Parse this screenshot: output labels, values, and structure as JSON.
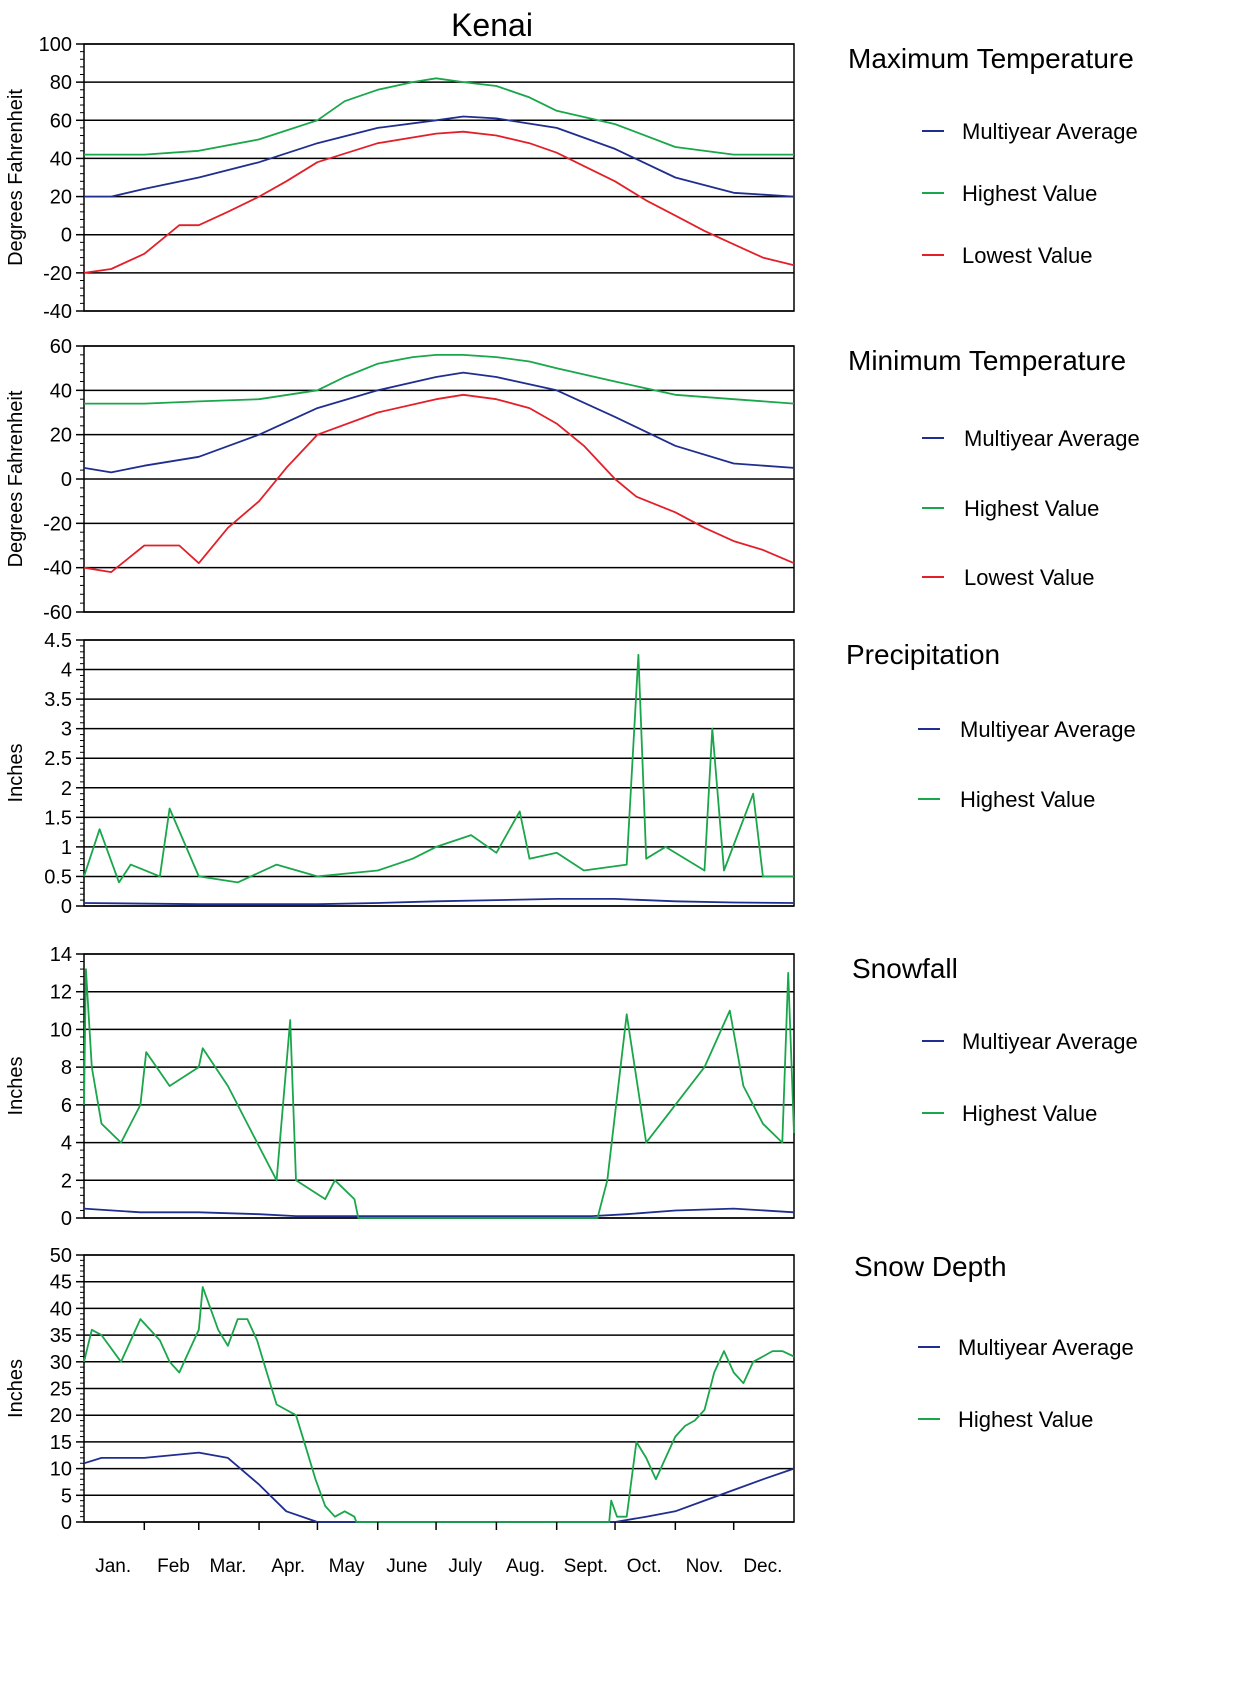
{
  "title": "Kenai",
  "colors": {
    "average": "#1f2e8f",
    "highest": "#1aa64a",
    "lowest": "#e3202a",
    "grid": "#000000"
  },
  "months": [
    "Jan.",
    "Feb",
    "Mar.",
    "Apr.",
    "May",
    "June",
    "July",
    "Aug.",
    "Sept.",
    "Oct.",
    "Nov.",
    "Dec."
  ],
  "chart_data": [
    {
      "type": "line",
      "title": "Maximum Temperature",
      "ylabel": "Degrees Fahrenheit",
      "ylim": [
        -40,
        100
      ],
      "yticks": [
        -40,
        -20,
        0,
        20,
        40,
        60,
        80,
        100
      ],
      "xlabel": "",
      "grid": true,
      "legend_position": "right",
      "series": [
        {
          "name": "Multiyear Average",
          "color": "#1f2e8f",
          "x": [
            1,
            15,
            32,
            60,
            91,
            121,
            152,
            182,
            196,
            213,
            244,
            274,
            305,
            335,
            366
          ],
          "y": [
            20,
            20,
            24,
            30,
            38,
            48,
            56,
            60,
            62,
            61,
            56,
            45,
            30,
            22,
            20
          ]
        },
        {
          "name": "Highest Value",
          "color": "#1aa64a",
          "x": [
            1,
            32,
            60,
            91,
            121,
            135,
            152,
            170,
            182,
            196,
            213,
            230,
            244,
            274,
            305,
            335,
            366
          ],
          "y": [
            42,
            42,
            44,
            50,
            60,
            70,
            76,
            80,
            82,
            80,
            78,
            72,
            65,
            58,
            46,
            42,
            42
          ]
        },
        {
          "name": "Lowest Value",
          "color": "#e3202a",
          "x": [
            1,
            15,
            32,
            50,
            60,
            75,
            91,
            105,
            121,
            152,
            182,
            196,
            213,
            230,
            244,
            258,
            274,
            290,
            305,
            320,
            335,
            350,
            366
          ],
          "y": [
            -20,
            -18,
            -10,
            5,
            5,
            12,
            20,
            28,
            38,
            48,
            53,
            54,
            52,
            48,
            43,
            36,
            28,
            18,
            10,
            2,
            -5,
            -12,
            -16
          ]
        }
      ]
    },
    {
      "type": "line",
      "title": "Minimum Temperature",
      "ylabel": "Degrees Fahrenheit",
      "ylim": [
        -60,
        60
      ],
      "yticks": [
        -60,
        -40,
        -20,
        0,
        20,
        40,
        60
      ],
      "xlabel": "",
      "grid": true,
      "legend_position": "right",
      "series": [
        {
          "name": "Multiyear Average",
          "color": "#1f2e8f",
          "x": [
            1,
            15,
            32,
            60,
            91,
            121,
            152,
            182,
            196,
            213,
            244,
            274,
            305,
            335,
            366
          ],
          "y": [
            5,
            3,
            6,
            10,
            20,
            32,
            40,
            46,
            48,
            46,
            40,
            28,
            15,
            7,
            5
          ]
        },
        {
          "name": "Highest Value",
          "color": "#1aa64a",
          "x": [
            1,
            32,
            60,
            91,
            121,
            135,
            152,
            170,
            182,
            196,
            213,
            230,
            244,
            274,
            305,
            335,
            366
          ],
          "y": [
            34,
            34,
            35,
            36,
            40,
            46,
            52,
            55,
            56,
            56,
            55,
            53,
            50,
            44,
            38,
            36,
            34
          ]
        },
        {
          "name": "Lowest Value",
          "color": "#e3202a",
          "x": [
            1,
            15,
            32,
            50,
            60,
            75,
            91,
            105,
            121,
            152,
            182,
            196,
            213,
            230,
            244,
            258,
            274,
            285,
            305,
            320,
            335,
            350,
            366
          ],
          "y": [
            -40,
            -42,
            -30,
            -30,
            -38,
            -22,
            -10,
            5,
            20,
            30,
            36,
            38,
            36,
            32,
            25,
            15,
            0,
            -8,
            -15,
            -22,
            -28,
            -32,
            -38
          ]
        }
      ]
    },
    {
      "type": "line",
      "title": "Precipitation",
      "ylabel": "Inches",
      "ylim": [
        0,
        4.5
      ],
      "yticks": [
        0,
        0.5,
        1,
        1.5,
        2,
        2.5,
        3,
        3.5,
        4,
        4.5
      ],
      "xlabel": "",
      "grid": true,
      "legend_position": "right",
      "series": [
        {
          "name": "Multiyear Average",
          "color": "#1f2e8f",
          "x": [
            1,
            60,
            121,
            152,
            182,
            213,
            244,
            274,
            305,
            335,
            366
          ],
          "y": [
            0.05,
            0.03,
            0.03,
            0.05,
            0.08,
            0.1,
            0.12,
            0.12,
            0.08,
            0.06,
            0.05
          ]
        },
        {
          "name": "Highest Value",
          "color": "#1aa64a",
          "x": [
            1,
            9,
            19,
            25,
            40,
            45,
            60,
            80,
            100,
            121,
            152,
            170,
            182,
            200,
            213,
            225,
            230,
            244,
            258,
            280,
            286,
            290,
            300,
            320,
            324,
            330,
            345,
            350,
            366
          ],
          "y": [
            0.5,
            1.3,
            0.4,
            0.7,
            0.5,
            1.65,
            0.5,
            0.4,
            0.7,
            0.5,
            0.6,
            0.8,
            1.0,
            1.2,
            0.9,
            1.6,
            0.8,
            0.9,
            0.6,
            0.7,
            4.25,
            0.8,
            1.0,
            0.6,
            3.0,
            0.6,
            1.9,
            0.5,
            0.5
          ]
        }
      ]
    },
    {
      "type": "line",
      "title": "Snowfall",
      "ylabel": "Inches",
      "ylim": [
        0,
        14
      ],
      "yticks": [
        0,
        2,
        4,
        6,
        8,
        10,
        12,
        14
      ],
      "xlabel": "",
      "grid": true,
      "legend_position": "right",
      "series": [
        {
          "name": "Multiyear Average",
          "color": "#1f2e8f",
          "x": [
            1,
            30,
            60,
            91,
            110,
            262,
            280,
            305,
            335,
            366
          ],
          "y": [
            0.5,
            0.3,
            0.3,
            0.2,
            0.1,
            0.1,
            0.2,
            0.4,
            0.5,
            0.3
          ]
        },
        {
          "name": "Highest Value",
          "color": "#1aa64a",
          "x": [
            1,
            2,
            5,
            10,
            20,
            30,
            33,
            45,
            60,
            62,
            75,
            90,
            100,
            107,
            110,
            125,
            130,
            140,
            142,
            265,
            270,
            280,
            290,
            305,
            320,
            333,
            340,
            350,
            360,
            363,
            366
          ],
          "y": [
            6,
            13.2,
            8,
            5,
            4,
            6,
            8.8,
            7,
            8,
            9,
            7,
            4,
            2,
            10.5,
            2,
            1,
            2,
            1,
            0,
            0,
            2,
            10.8,
            4,
            6,
            8,
            11,
            7,
            5,
            4,
            13,
            4.5
          ]
        }
      ]
    },
    {
      "type": "line",
      "title": "Snow Depth",
      "ylabel": "Inches",
      "ylim": [
        0,
        50
      ],
      "yticks": [
        0,
        5,
        10,
        15,
        20,
        25,
        30,
        35,
        40,
        45,
        50
      ],
      "xlabel": "",
      "grid": true,
      "legend_position": "right",
      "series": [
        {
          "name": "Multiyear Average",
          "color": "#1f2e8f",
          "x": [
            1,
            10,
            32,
            60,
            75,
            91,
            105,
            121,
            130,
            274,
            290,
            305,
            320,
            335,
            350,
            366
          ],
          "y": [
            11,
            12,
            12,
            13,
            12,
            7,
            2,
            0,
            0,
            0,
            1,
            2,
            4,
            6,
            8,
            10
          ]
        },
        {
          "name": "Highest Value",
          "color": "#1aa64a",
          "x": [
            1,
            5,
            10,
            20,
            30,
            40,
            45,
            50,
            55,
            60,
            62,
            70,
            75,
            80,
            85,
            90,
            95,
            100,
            105,
            110,
            115,
            120,
            125,
            130,
            135,
            140,
            141,
            271,
            272,
            275,
            280,
            285,
            290,
            295,
            300,
            305,
            310,
            315,
            320,
            325,
            330,
            335,
            340,
            345,
            350,
            355,
            360,
            366
          ],
          "y": [
            30,
            36,
            35,
            30,
            38,
            34,
            30,
            28,
            32,
            36,
            44,
            36,
            33,
            38,
            38,
            34,
            28,
            22,
            21,
            20,
            14,
            8,
            3,
            1,
            2,
            1,
            0,
            0,
            4,
            1,
            1,
            15,
            12,
            8,
            12,
            16,
            18,
            19,
            21,
            28,
            32,
            28,
            26,
            30,
            31,
            32,
            32,
            31
          ]
        }
      ]
    }
  ]
}
